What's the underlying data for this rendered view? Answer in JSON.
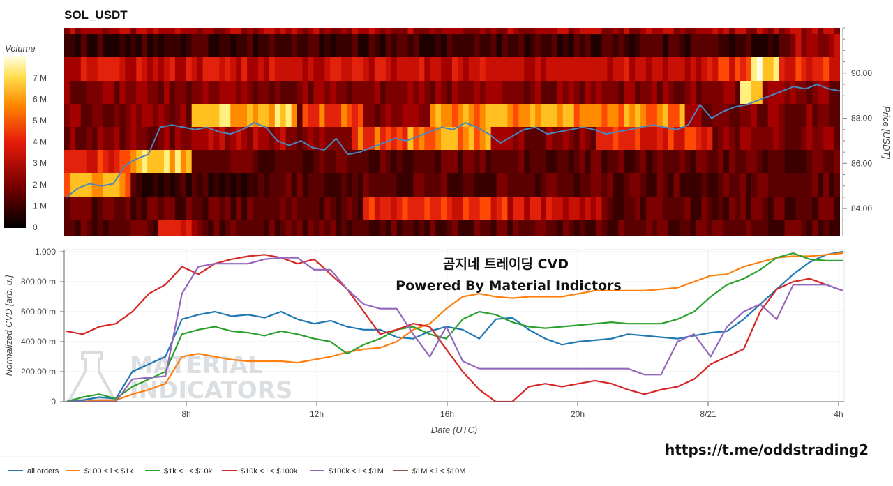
{
  "chart_data": [
    {
      "type": "heatmap",
      "title": "SOL_USDT",
      "colorbar_label": "Volume",
      "colorbar_ticks": [
        "0",
        "1 M",
        "2 M",
        "3 M",
        "4 M",
        "5 M",
        "6 M",
        "7 M"
      ],
      "ylabel": "Price [USDT]",
      "y_ticks": [
        "84.00",
        "86.00",
        "88.00",
        "90.00"
      ],
      "price_line_color": "#4a86c0",
      "price_line": [
        84.5,
        84.9,
        85.1,
        85.0,
        85.1,
        85.9,
        86.2,
        86.4,
        87.6,
        87.7,
        87.6,
        87.5,
        87.6,
        87.4,
        87.3,
        87.5,
        87.8,
        87.6,
        87.0,
        86.8,
        87.0,
        86.7,
        86.6,
        87.1,
        86.4,
        86.5,
        86.7,
        86.9,
        87.1,
        87.0,
        87.2,
        87.4,
        87.6,
        87.5,
        87.8,
        87.6,
        87.3,
        86.9,
        87.2,
        87.5,
        87.6,
        87.3,
        87.4,
        87.5,
        87.6,
        87.5,
        87.3,
        87.4,
        87.5,
        87.6,
        87.7,
        87.6,
        87.5,
        87.7,
        88.6,
        88.0,
        88.3,
        88.5,
        88.6,
        88.8,
        89.0,
        89.2,
        89.4,
        89.3,
        89.5,
        89.3,
        89.2
      ]
    },
    {
      "type": "line",
      "xlabel": "Date (UTC)",
      "ylabel": "Normalized CVD [arb. u.]",
      "x_ticks": [
        "8h",
        "12h",
        "16h",
        "20h",
        "8/21",
        "4h"
      ],
      "y_ticks": [
        "0",
        "200.00 m",
        "400.00 m",
        "600.00 m",
        "800.00 m",
        "1.000"
      ],
      "series": [
        {
          "name": "all orders",
          "color": "#1f77b4",
          "values": [
            0.0,
            0.01,
            0.03,
            0.02,
            0.2,
            0.25,
            0.3,
            0.55,
            0.58,
            0.6,
            0.57,
            0.58,
            0.56,
            0.6,
            0.55,
            0.52,
            0.54,
            0.5,
            0.48,
            0.48,
            0.43,
            0.42,
            0.47,
            0.5,
            0.48,
            0.42,
            0.55,
            0.56,
            0.48,
            0.42,
            0.38,
            0.4,
            0.41,
            0.42,
            0.45,
            0.44,
            0.43,
            0.42,
            0.44,
            0.46,
            0.47,
            0.55,
            0.65,
            0.75,
            0.85,
            0.93,
            0.98,
            1.0
          ]
        },
        {
          "name": "$100 < i < $1k",
          "color": "#ff7f0e",
          "values": [
            0.0,
            0.0,
            0.01,
            0.01,
            0.05,
            0.08,
            0.12,
            0.3,
            0.32,
            0.3,
            0.28,
            0.27,
            0.27,
            0.27,
            0.26,
            0.28,
            0.3,
            0.33,
            0.35,
            0.36,
            0.4,
            0.48,
            0.52,
            0.62,
            0.7,
            0.72,
            0.7,
            0.69,
            0.7,
            0.7,
            0.7,
            0.72,
            0.74,
            0.74,
            0.74,
            0.74,
            0.75,
            0.76,
            0.8,
            0.84,
            0.85,
            0.9,
            0.93,
            0.96,
            0.97,
            0.97,
            0.98,
            0.99
          ]
        },
        {
          "name": "$1k < i < $10k",
          "color": "#2ca02c",
          "values": [
            0.0,
            0.03,
            0.05,
            0.02,
            0.1,
            0.15,
            0.2,
            0.45,
            0.48,
            0.5,
            0.47,
            0.46,
            0.44,
            0.47,
            0.45,
            0.42,
            0.4,
            0.32,
            0.38,
            0.42,
            0.48,
            0.5,
            0.45,
            0.42,
            0.55,
            0.6,
            0.58,
            0.53,
            0.5,
            0.49,
            0.5,
            0.51,
            0.52,
            0.53,
            0.52,
            0.52,
            0.52,
            0.55,
            0.6,
            0.7,
            0.78,
            0.82,
            0.88,
            0.96,
            0.99,
            0.95,
            0.94,
            0.94
          ]
        },
        {
          "name": "$10k < i < $100k",
          "color": "#d62728",
          "values": [
            0.47,
            0.45,
            0.5,
            0.52,
            0.6,
            0.72,
            0.78,
            0.9,
            0.85,
            0.92,
            0.95,
            0.97,
            0.98,
            0.96,
            0.92,
            0.95,
            0.85,
            0.75,
            0.6,
            0.45,
            0.48,
            0.52,
            0.5,
            0.35,
            0.2,
            0.08,
            0.0,
            0.0,
            0.1,
            0.12,
            0.1,
            0.12,
            0.14,
            0.12,
            0.08,
            0.05,
            0.08,
            0.1,
            0.15,
            0.25,
            0.3,
            0.35,
            0.6,
            0.75,
            0.8,
            0.82,
            0.78,
            0.74
          ]
        },
        {
          "name": "$100k < i < $1M",
          "color": "#9467bd",
          "values": [
            0.0,
            0.0,
            0.0,
            0.0,
            0.15,
            0.16,
            0.17,
            0.72,
            0.9,
            0.92,
            0.92,
            0.92,
            0.95,
            0.96,
            0.96,
            0.88,
            0.88,
            0.75,
            0.65,
            0.62,
            0.62,
            0.45,
            0.3,
            0.5,
            0.27,
            0.22,
            0.22,
            0.22,
            0.22,
            0.22,
            0.22,
            0.22,
            0.22,
            0.22,
            0.22,
            0.18,
            0.18,
            0.4,
            0.45,
            0.3,
            0.5,
            0.6,
            0.65,
            0.55,
            0.78,
            0.78,
            0.78,
            0.74
          ]
        },
        {
          "name": "$1M < i < $10M",
          "color": "#8c564b",
          "values": []
        }
      ]
    }
  ],
  "overlay": {
    "line1": "곰지네 트레이딩 CVD",
    "line2": "Powered By Material Indictors"
  },
  "watermark": {
    "line1": "MATERIAL",
    "line2": "INDICATORS"
  },
  "link_text": "https://t.me/oddstrading2"
}
